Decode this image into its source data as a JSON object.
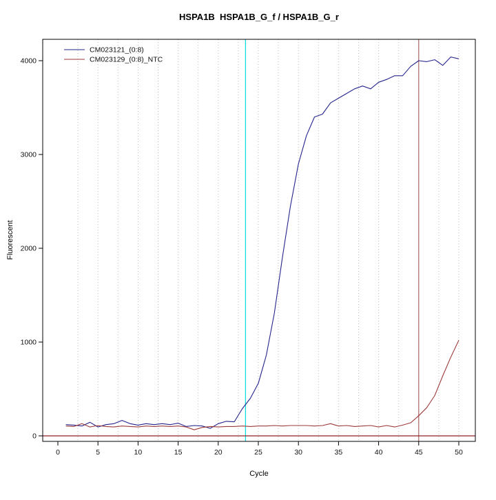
{
  "title": "HSPA1B  HSPA1B_G_f / HSPA1B_G_r",
  "chart_data": {
    "type": "line",
    "title": "HSPA1B  HSPA1B_G_f / HSPA1B_G_r",
    "xlabel": "Cycle",
    "ylabel": "Fluorescent",
    "xlim": [
      -1.9,
      52.1
    ],
    "ylim": [
      -60,
      4220
    ],
    "xticks": [
      0,
      5,
      10,
      15,
      20,
      25,
      30,
      35,
      40,
      45,
      50
    ],
    "yticks": [
      0,
      1000,
      2000,
      3000,
      4000
    ],
    "grid": {
      "vertical_step": 2.5,
      "style": "dotted",
      "color": "#bcbcbc"
    },
    "legend_position": "top-left",
    "cycles": [
      1,
      2,
      3,
      4,
      5,
      6,
      7,
      8,
      9,
      10,
      11,
      12,
      13,
      14,
      15,
      16,
      17,
      18,
      19,
      20,
      21,
      22,
      23,
      24,
      25,
      26,
      27,
      28,
      29,
      30,
      31,
      32,
      33,
      34,
      35,
      36,
      37,
      38,
      39,
      40,
      41,
      42,
      43,
      44,
      45,
      46,
      47,
      48,
      49,
      50
    ],
    "series": [
      {
        "name": "CM023121_(0:8)",
        "color": "#23238b",
        "values": [
          120,
          115,
          105,
          145,
          95,
          120,
          130,
          165,
          130,
          115,
          130,
          120,
          130,
          120,
          135,
          100,
          110,
          105,
          80,
          130,
          155,
          150,
          290,
          400,
          560,
          860,
          1310,
          1900,
          2450,
          2900,
          3200,
          3400,
          3430,
          3550,
          3600,
          3650,
          3700,
          3730,
          3700,
          3770,
          3800,
          3840,
          3840,
          3940,
          4000,
          3990,
          4010,
          3950,
          4040,
          4020
        ]
      },
      {
        "name": "CM023129_(0:8)_NTC",
        "color": "#9c3a3a",
        "values": [
          105,
          100,
          130,
          95,
          110,
          100,
          95,
          105,
          100,
          95,
          105,
          100,
          105,
          100,
          105,
          95,
          65,
          90,
          100,
          95,
          100,
          100,
          105,
          100,
          105,
          105,
          110,
          105,
          110,
          110,
          110,
          105,
          110,
          130,
          105,
          110,
          100,
          105,
          110,
          95,
          110,
          95,
          115,
          140,
          215,
          300,
          430,
          640,
          840,
          1020
        ]
      }
    ],
    "vlines": [
      {
        "x": 23.4,
        "color": "#00dede",
        "name": "threshold-cycle-line"
      },
      {
        "x": 45,
        "color": "#aa6666",
        "name": "cycle-45-line"
      }
    ],
    "hlines": [
      {
        "y": 0,
        "color": "#8b2020",
        "name": "baseline-zero-line"
      }
    ]
  },
  "legend": {
    "items": [
      {
        "label": "CM023121_(0:8)",
        "color": "#23238b"
      },
      {
        "label": "CM023129_(0:8)_NTC",
        "color": "#9c3a3a"
      }
    ]
  }
}
